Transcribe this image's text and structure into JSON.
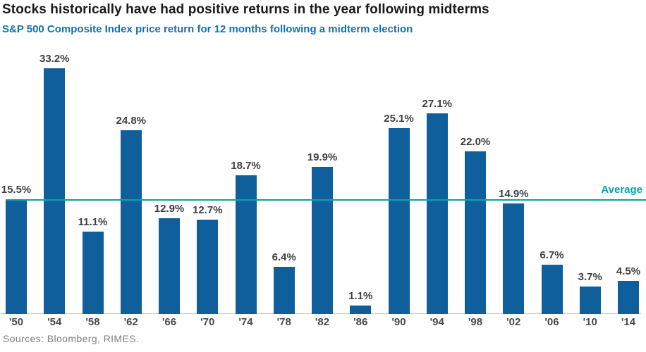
{
  "header": {
    "title": "Stocks historically have had positive returns in the year following midterms",
    "subtitle": "S&P 500 Composite Index price return for 12 months following a midterm election"
  },
  "footer": {
    "sources": "Sources:  Bloomberg, RIMES."
  },
  "chart_data": {
    "type": "bar",
    "title": "Stocks historically have had positive returns in the year following midterms",
    "subtitle": "S&P 500 Composite Index price return for 12 months following a midterm election",
    "categories": [
      "'50",
      "'54",
      "'58",
      "'62",
      "'66",
      "'70",
      "'74",
      "'78",
      "'82",
      "'86",
      "'90",
      "'94",
      "'98",
      "'02",
      "'06",
      "'10",
      "'14"
    ],
    "values": [
      15.5,
      33.2,
      11.1,
      24.8,
      12.9,
      12.7,
      18.7,
      6.4,
      19.9,
      1.1,
      25.1,
      27.1,
      22.0,
      14.9,
      6.7,
      3.7,
      4.5
    ],
    "value_labels": [
      "15.5%",
      "33.2%",
      "11.1%",
      "24.8%",
      "12.9%",
      "12.7%",
      "18.7%",
      "6.4%",
      "19.9%",
      "1.1%",
      "25.1%",
      "27.1%",
      "22.0%",
      "14.9%",
      "6.7%",
      "3.7%",
      "4.5%"
    ],
    "average": {
      "value": 15.3,
      "label": "Average"
    },
    "xlabel": "",
    "ylabel": "",
    "ylim": [
      0,
      36.7
    ],
    "grid": false,
    "legend_position": "none",
    "colors": {
      "bar": "#0e5f9c",
      "average_line": "#00a6a6",
      "title": "#1a1a1a",
      "subtitle": "#0e72b8",
      "value_label": "#3f3f3f",
      "tick_label": "#4a4a4a",
      "baseline": "#c9c9c9",
      "sources": "#7f7f7f"
    }
  }
}
